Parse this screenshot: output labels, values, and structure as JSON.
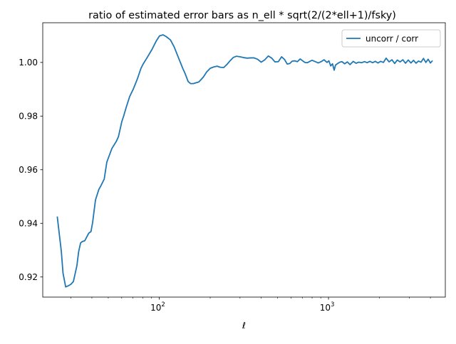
{
  "chart_data": {
    "type": "line",
    "title": "ratio of estimated error bars as n_ell * sqrt(2/(2*ell+1)/fsky)",
    "xlabel": "ℓ",
    "ylabel": "",
    "xscale": "log",
    "xlim": [
      20.5,
      4900
    ],
    "ylim": [
      0.9125,
      1.0148
    ],
    "x_ticks": [
      {
        "value": 100,
        "base": "10",
        "exp": "2"
      },
      {
        "value": 1000,
        "base": "10",
        "exp": "3"
      }
    ],
    "x_minor_ticks": [
      30,
      40,
      50,
      60,
      70,
      80,
      90,
      200,
      300,
      400,
      500,
      600,
      700,
      800,
      900,
      2000,
      3000,
      4000
    ],
    "y_ticks": [
      {
        "value": 0.92,
        "label": "0.92"
      },
      {
        "value": 0.94,
        "label": "0.94"
      },
      {
        "value": 0.96,
        "label": "0.96"
      },
      {
        "value": 0.98,
        "label": "0.98"
      },
      {
        "value": 1.0,
        "label": "1.00"
      }
    ],
    "grid": false,
    "legend_position": "top-right",
    "series": [
      {
        "name": "uncorr / corr",
        "color": "#1f77b4",
        "x": [
          25.0,
          26.4,
          27.0,
          28.0,
          29.2,
          30.1,
          31.1,
          32.6,
          33.4,
          34.3,
          35.1,
          36.3,
          37.5,
          38.4,
          39.5,
          40.4,
          42.0,
          44.0,
          45.3,
          47.3,
          49.0,
          52.5,
          55.8,
          57.4,
          60.2,
          61.7,
          63.9,
          66.9,
          70.3,
          74.2,
          78.0,
          80.3,
          85.0,
          90.5,
          96.0,
          100.4,
          105.4,
          110.1,
          116.5,
          122.5,
          130.2,
          138.3,
          142.1,
          148.1,
          153.4,
          159.1,
          164.6,
          171.2,
          176.6,
          182.4,
          190.5,
          200.0,
          209.4,
          219.7,
          229.2,
          240.5,
          251.5,
          262.8,
          274.5,
          285.7,
          300.0,
          315.2,
          330.5,
          346.4,
          363.1,
          380.8,
          400.0,
          420.5,
          441.2,
          461.9,
          482.6,
          505.8,
          528.4,
          549.9,
          570.1,
          590.3,
          610.5,
          632.0,
          655.2,
          680.4,
          700.0,
          725.5,
          750.3,
          776.1,
          800.0,
          834.8,
          870.2,
          905.3,
          940.9,
          980.0,
          1005.0,
          1030.5,
          1055.7,
          1080.4,
          1100.0,
          1132.4,
          1165.6,
          1200.0,
          1245.6,
          1292.0,
          1340.1,
          1400.0,
          1455.4,
          1510.2,
          1568.5,
          1630.7,
          1691.9,
          1756.3,
          1821.5,
          1890.4,
          1960.8,
          2034.2,
          2110.5,
          2190.0,
          2280.0,
          2370.0,
          2460.0,
          2550.0,
          2650.0,
          2750.0,
          2850.0,
          2960.0,
          3070.0,
          3180.0,
          3290.0,
          3400.0,
          3520.0,
          3640.0,
          3760.0,
          3880.0,
          4000.0,
          4096.0
        ],
        "y": [
          0.9423,
          0.9295,
          0.9215,
          0.9163,
          0.9168,
          0.9173,
          0.9183,
          0.9241,
          0.9294,
          0.9327,
          0.9332,
          0.9335,
          0.9352,
          0.9364,
          0.9369,
          0.9403,
          0.9487,
          0.9527,
          0.9541,
          0.9565,
          0.9628,
          0.9679,
          0.9706,
          0.9723,
          0.9781,
          0.9801,
          0.9834,
          0.9873,
          0.9901,
          0.9938,
          0.9978,
          0.9994,
          1.0019,
          1.0048,
          1.008,
          1.0099,
          1.0103,
          1.0096,
          1.0084,
          1.0058,
          1.0016,
          0.9975,
          0.9959,
          0.9929,
          0.9921,
          0.9921,
          0.9924,
          0.9927,
          0.9936,
          0.9946,
          0.9964,
          0.9978,
          0.9983,
          0.9986,
          0.9982,
          0.9981,
          0.9993,
          1.0007,
          1.0019,
          1.0023,
          1.0021,
          1.0018,
          1.0016,
          1.0017,
          1.0017,
          1.0012,
          1.0001,
          1.001,
          1.0024,
          1.0016,
          1.0002,
          1.0003,
          1.0021,
          1.0011,
          0.9994,
          0.9996,
          1.0005,
          1.0006,
          1.0003,
          1.0013,
          1.0007,
          1.0,
          0.9999,
          1.0004,
          1.0008,
          1.0003,
          0.9998,
          1.0003,
          1.001,
          1.0,
          1.0006,
          0.9987,
          0.9995,
          0.9971,
          0.999,
          0.9996,
          1.0001,
          1.0003,
          0.9995,
          1.0002,
          0.9992,
          1.0004,
          0.9997,
          1.0001,
          0.9999,
          1.0003,
          0.9999,
          1.0004,
          0.9999,
          1.0004,
          0.9998,
          1.0004,
          1.0,
          1.0016,
          1.0002,
          1.001,
          0.9996,
          1.0009,
          1.0002,
          1.001,
          0.9997,
          1.0009,
          0.9998,
          1.0008,
          0.9997,
          1.0005,
          1.0001,
          1.0015,
          1.0,
          1.0012,
          0.9998,
          1.0005
        ]
      }
    ]
  }
}
